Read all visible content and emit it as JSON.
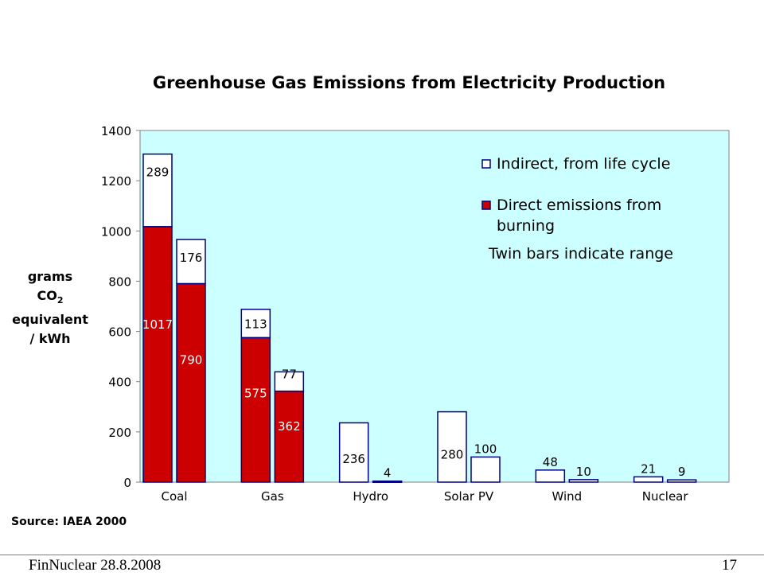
{
  "chart_data": {
    "type": "bar",
    "title": "Greenhouse Gas Emissions from Electricity Production",
    "ylabel": {
      "line1": "grams",
      "line2_main": "CO",
      "line2_sub": "2",
      "line3": "equivalent",
      "line4": "/ kWh"
    },
    "ylim": [
      0,
      1400
    ],
    "yticks": [
      "0",
      "200",
      "400",
      "600",
      "800",
      "1000",
      "1200",
      "1400"
    ],
    "categories": [
      "Coal",
      "Gas",
      "Hydro",
      "Solar PV",
      "Wind",
      "Nuclear"
    ],
    "bars": [
      {
        "category": "Coal",
        "direct": 1017,
        "indirect": 289,
        "direct_label": "1017",
        "indirect_label": "289"
      },
      {
        "category": "Coal",
        "direct": 790,
        "indirect": 176,
        "direct_label": "790",
        "indirect_label": "176"
      },
      {
        "category": "Gas",
        "direct": 575,
        "indirect": 113,
        "direct_label": "575",
        "indirect_label": "113"
      },
      {
        "category": "Gas",
        "direct": 362,
        "indirect": 77,
        "direct_label": "362",
        "indirect_label": "77"
      },
      {
        "category": "Hydro",
        "direct": 0,
        "indirect": 236,
        "direct_label": "",
        "indirect_label": "236"
      },
      {
        "category": "Hydro",
        "direct": 0,
        "indirect": 4,
        "direct_label": "",
        "indirect_label": "4"
      },
      {
        "category": "Solar PV",
        "direct": 0,
        "indirect": 280,
        "direct_label": "",
        "indirect_label": "280"
      },
      {
        "category": "Solar PV",
        "direct": 0,
        "indirect": 100,
        "direct_label": "",
        "indirect_label": "100"
      },
      {
        "category": "Wind",
        "direct": 0,
        "indirect": 48,
        "direct_label": "",
        "indirect_label": "48"
      },
      {
        "category": "Wind",
        "direct": 0,
        "indirect": 10,
        "direct_label": "",
        "indirect_label": "10"
      },
      {
        "category": "Nuclear",
        "direct": 0,
        "indirect": 21,
        "direct_label": "",
        "indirect_label": "21"
      },
      {
        "category": "Nuclear",
        "direct": 0,
        "indirect": 9,
        "direct_label": "",
        "indirect_label": "9"
      }
    ],
    "legend": {
      "indirect": "Indirect, from life cycle",
      "direct_line1": "Direct emissions from",
      "direct_line2": "burning",
      "note": "Twin bars indicate range",
      "placement": "top-right"
    },
    "grid": false,
    "colors": {
      "direct": "#cc0000",
      "indirect": "#ffffff",
      "bar_outline": "#000080",
      "plot_background": "#ccffff"
    },
    "source": "Source: IAEA 2000"
  },
  "footer": {
    "left": "FinNuclear 28.8.2008",
    "right": "17"
  }
}
